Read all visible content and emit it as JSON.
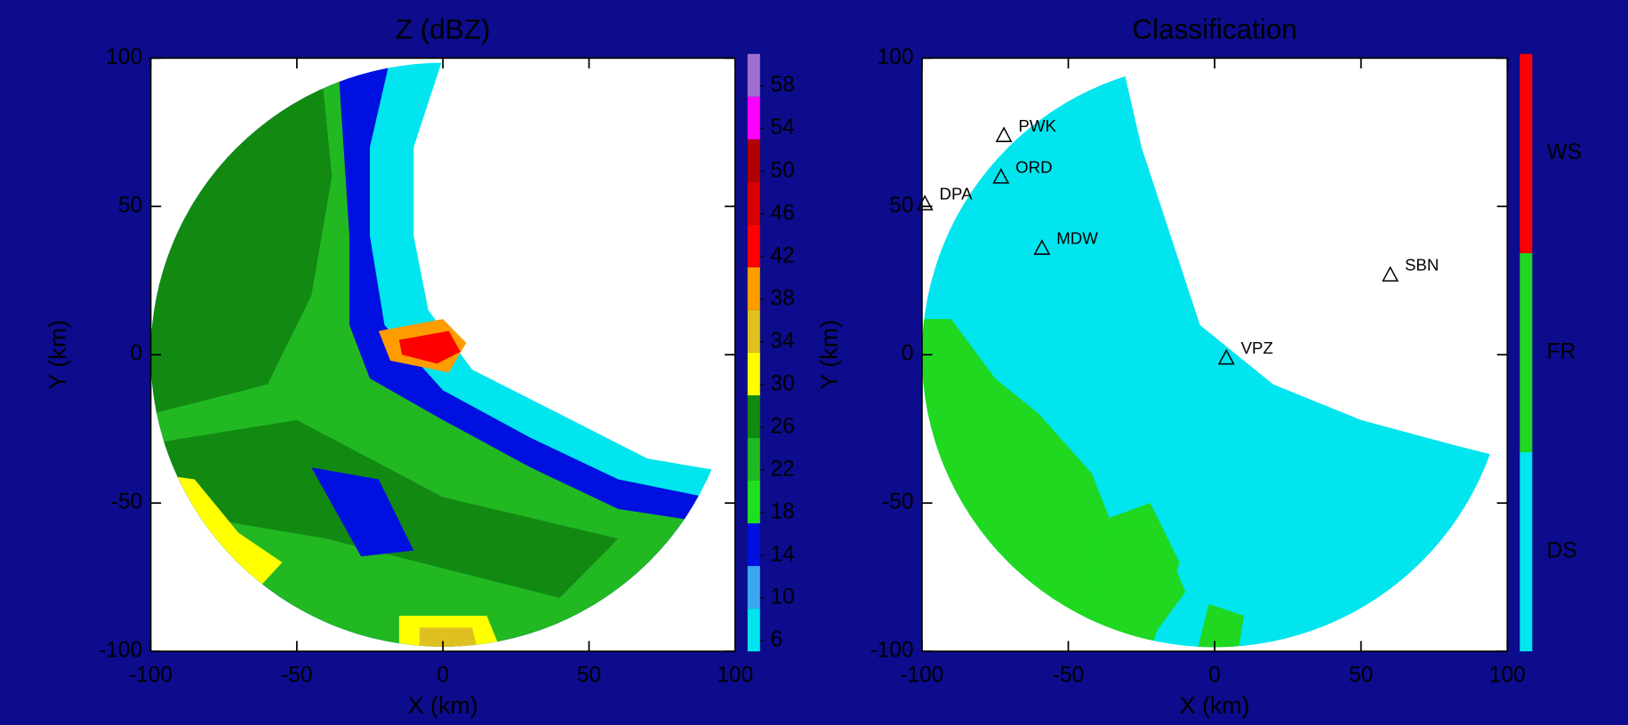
{
  "chart_data": [
    {
      "type": "heatmap",
      "title": "Z (dBZ)",
      "xlabel": "X (km)",
      "ylabel": "Y (km)",
      "xlim": [
        -100,
        100
      ],
      "ylim": [
        -100,
        100
      ],
      "xticks": [
        -100,
        -50,
        0,
        50,
        100
      ],
      "yticks": [
        -100,
        -50,
        0,
        50,
        100
      ],
      "colorbar": {
        "lim": [
          5,
          61
        ],
        "ticks": [
          6,
          10,
          14,
          18,
          22,
          26,
          30,
          34,
          38,
          42,
          46,
          50,
          54,
          58
        ],
        "bounds": [
          5,
          9,
          13,
          17,
          21,
          25,
          29,
          33,
          37,
          41,
          45,
          49,
          53,
          57,
          61
        ],
        "colors": [
          "#00e5ee",
          "#3aa8f0",
          "#0010e0",
          "#1fe01f",
          "#22b822",
          "#128a12",
          "#ffff00",
          "#e0c020",
          "#ff9c00",
          "#ff0000",
          "#d80000",
          "#b00000",
          "#ff00ff",
          "#a070d0"
        ]
      },
      "regions": [
        {
          "value": 6,
          "points": [
            [
              -100,
              100
            ],
            [
              0,
              100
            ],
            [
              -10,
              70
            ],
            [
              -10,
              40
            ],
            [
              -5,
              15
            ],
            [
              10,
              -5
            ],
            [
              40,
              -20
            ],
            [
              70,
              -35
            ],
            [
              100,
              -40
            ],
            [
              100,
              -100
            ],
            [
              -100,
              -100
            ]
          ]
        },
        {
          "value": 14,
          "points": [
            [
              -100,
              100
            ],
            [
              -18,
              100
            ],
            [
              -25,
              70
            ],
            [
              -25,
              40
            ],
            [
              -20,
              10
            ],
            [
              0,
              -12
            ],
            [
              30,
              -28
            ],
            [
              60,
              -42
            ],
            [
              100,
              -50
            ],
            [
              100,
              -100
            ],
            [
              -100,
              -100
            ]
          ]
        },
        {
          "value": 22,
          "points": [
            [
              -100,
              100
            ],
            [
              -36,
              100
            ],
            [
              -34,
              70
            ],
            [
              -32,
              40
            ],
            [
              -32,
              10
            ],
            [
              -25,
              -8
            ],
            [
              0,
              -22
            ],
            [
              30,
              -38
            ],
            [
              60,
              -52
            ],
            [
              100,
              -58
            ],
            [
              100,
              -100
            ],
            [
              -100,
              -100
            ]
          ]
        },
        {
          "value": 26,
          "points": [
            [
              -100,
              100
            ],
            [
              -42,
              100
            ],
            [
              -38,
              60
            ],
            [
              -45,
              20
            ],
            [
              -60,
              -10
            ],
            [
              -100,
              -20
            ]
          ]
        },
        {
          "value": 26,
          "points": [
            [
              -100,
              -30
            ],
            [
              -50,
              -22
            ],
            [
              0,
              -48
            ],
            [
              60,
              -62
            ],
            [
              40,
              -82
            ],
            [
              -40,
              -62
            ],
            [
              -100,
              -52
            ]
          ]
        },
        {
          "value": 14,
          "points": [
            [
              -45,
              -38
            ],
            [
              -22,
              -42
            ],
            [
              -10,
              -66
            ],
            [
              -28,
              -68
            ]
          ]
        },
        {
          "value": 30,
          "points": [
            [
              -100,
              -40
            ],
            [
              -85,
              -42
            ],
            [
              -70,
              -60
            ],
            [
              -55,
              -70
            ],
            [
              -70,
              -86
            ],
            [
              -92,
              -70
            ]
          ]
        },
        {
          "value": 30,
          "points": [
            [
              -15,
              -88
            ],
            [
              15,
              -88
            ],
            [
              20,
              -100
            ],
            [
              -15,
              -100
            ]
          ]
        },
        {
          "value": 34,
          "points": [
            [
              -8,
              -92
            ],
            [
              10,
              -92
            ],
            [
              12,
              -100
            ],
            [
              -8,
              -100
            ]
          ]
        },
        {
          "value": 38,
          "points": [
            [
              -22,
              8
            ],
            [
              0,
              12
            ],
            [
              8,
              4
            ],
            [
              2,
              -6
            ],
            [
              -18,
              -2
            ]
          ]
        },
        {
          "value": 42,
          "points": [
            [
              -15,
              5
            ],
            [
              2,
              8
            ],
            [
              6,
              1
            ],
            [
              -2,
              -3
            ],
            [
              -14,
              0
            ]
          ]
        }
      ]
    },
    {
      "type": "classification",
      "title": "Classification",
      "xlabel": "X (km)",
      "ylabel": "Y (km)",
      "xlim": [
        -100,
        100
      ],
      "ylim": [
        -100,
        100
      ],
      "xticks": [
        -100,
        -50,
        0,
        50,
        100
      ],
      "yticks": [
        -100,
        -50,
        0,
        50,
        100
      ],
      "classes": [
        {
          "name": "DS",
          "color": "#00e5ee"
        },
        {
          "name": "FR",
          "color": "#1fd81f"
        },
        {
          "name": "WS",
          "color": "#ff0000"
        }
      ],
      "regions": [
        {
          "class": "DS",
          "points": [
            [
              -100,
              100
            ],
            [
              -32,
              100
            ],
            [
              -25,
              70
            ],
            [
              -15,
              40
            ],
            [
              -5,
              10
            ],
            [
              20,
              -10
            ],
            [
              50,
              -22
            ],
            [
              80,
              -30
            ],
            [
              100,
              -35
            ],
            [
              100,
              -100
            ],
            [
              -100,
              -100
            ]
          ]
        },
        {
          "class": "FR",
          "points": [
            [
              -100,
              12
            ],
            [
              -90,
              12
            ],
            [
              -75,
              -8
            ],
            [
              -60,
              -20
            ],
            [
              -42,
              -40
            ],
            [
              -36,
              -55
            ],
            [
              -22,
              -50
            ],
            [
              -12,
              -70
            ],
            [
              -22,
              -100
            ],
            [
              -60,
              -100
            ],
            [
              -75,
              -70
            ],
            [
              -100,
              -50
            ]
          ]
        },
        {
          "class": "FR",
          "points": [
            [
              -40,
              -60
            ],
            [
              -20,
              -56
            ],
            [
              -10,
              -80
            ],
            [
              -25,
              -100
            ],
            [
              -45,
              -95
            ]
          ]
        },
        {
          "class": "FR",
          "points": [
            [
              -2,
              -84
            ],
            [
              10,
              -88
            ],
            [
              8,
              -100
            ],
            [
              -6,
              -100
            ]
          ]
        }
      ],
      "stations": {
        "names": [
          "PWK",
          "ORD",
          "DPA",
          "MDW",
          "SBN",
          "VPZ"
        ],
        "x": [
          -72,
          -73,
          -99,
          -59,
          60,
          4
        ],
        "y": [
          74,
          60,
          51,
          36,
          27,
          -1
        ]
      }
    }
  ]
}
